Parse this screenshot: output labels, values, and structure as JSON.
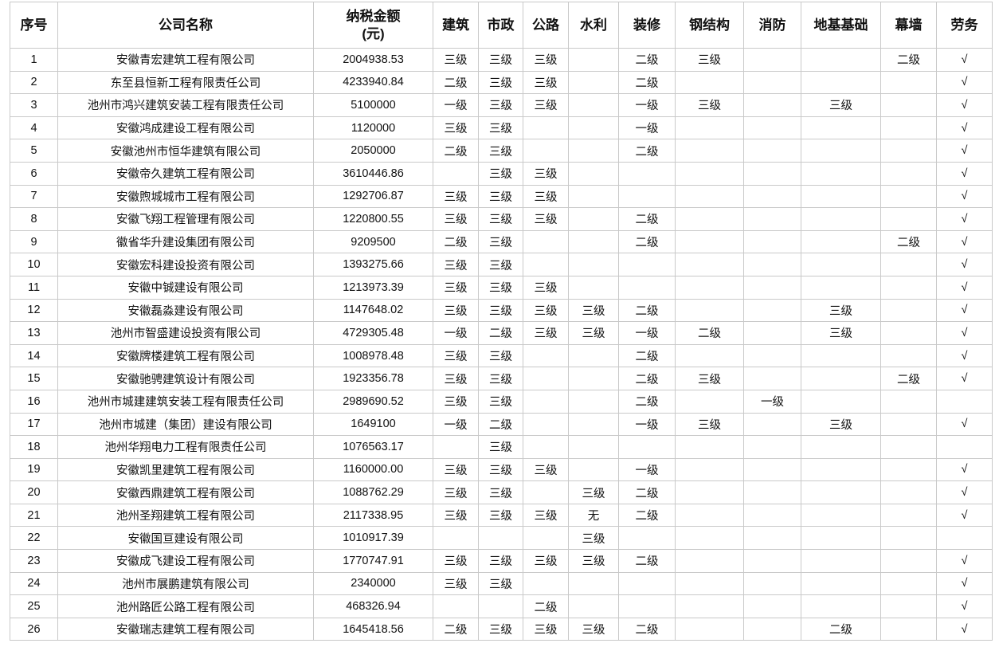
{
  "table": {
    "header": [
      "序号",
      "公司名称",
      "纳税金额\n(元)",
      "建筑",
      "市政",
      "公路",
      "水利",
      "装修",
      "钢结构",
      "消防",
      "地基基础",
      "幕墙",
      "劳务"
    ],
    "rows": [
      [
        1,
        "安徽青宏建筑工程有限公司",
        "2004938.53",
        "三级",
        "三级",
        "三级",
        null,
        "二级",
        "三级",
        null,
        null,
        "二级",
        "√"
      ],
      [
        2,
        "东至县恒新工程有限责任公司",
        "4233940.84",
        "二级",
        "三级",
        "三级",
        null,
        "二级",
        null,
        null,
        null,
        null,
        "√"
      ],
      [
        3,
        "池州市鸿兴建筑安装工程有限责任公司",
        "5100000",
        "一级",
        "三级",
        "三级",
        null,
        "一级",
        "三级",
        null,
        "三级",
        null,
        "√"
      ],
      [
        4,
        "安徽鸿成建设工程有限公司",
        "1120000",
        "三级",
        "三级",
        null,
        null,
        "一级",
        null,
        null,
        null,
        null,
        "√"
      ],
      [
        5,
        "安徽池州市恒华建筑有限公司",
        "2050000",
        "二级",
        "三级",
        null,
        null,
        "二级",
        null,
        null,
        null,
        null,
        "√"
      ],
      [
        6,
        "安徽帝久建筑工程有限公司",
        "3610446.86",
        null,
        "三级",
        "三级",
        null,
        null,
        null,
        null,
        null,
        null,
        "√"
      ],
      [
        7,
        "安徽煦城城市工程有限公司",
        "1292706.87",
        "三级",
        "三级",
        "三级",
        null,
        null,
        null,
        null,
        null,
        null,
        "√"
      ],
      [
        8,
        "安徽飞翔工程管理有限公司",
        "1220800.55",
        "三级",
        "三级",
        "三级",
        null,
        "二级",
        null,
        null,
        null,
        null,
        "√"
      ],
      [
        9,
        "徽省华升建设集团有限公司",
        "9209500",
        "二级",
        "三级",
        null,
        null,
        "二级",
        null,
        null,
        null,
        "二级",
        "√"
      ],
      [
        10,
        "安徽宏科建设投资有限公司",
        "1393275.66",
        "三级",
        "三级",
        null,
        null,
        null,
        null,
        null,
        null,
        null,
        "√"
      ],
      [
        11,
        "安徽中铖建设有限公司",
        "1213973.39",
        "三级",
        "三级",
        "三级",
        null,
        null,
        null,
        null,
        null,
        null,
        "√"
      ],
      [
        12,
        "安徽磊淼建设有限公司",
        "1147648.02",
        "三级",
        "三级",
        "三级",
        "三级",
        "二级",
        null,
        null,
        "三级",
        null,
        "√"
      ],
      [
        13,
        "池州市智盛建设投资有限公司",
        "4729305.48",
        "一级",
        "二级",
        "三级",
        "三级",
        "一级",
        "二级",
        null,
        "三级",
        null,
        "√"
      ],
      [
        14,
        "安徽牌楼建筑工程有限公司",
        "1008978.48",
        "三级",
        "三级",
        null,
        null,
        "二级",
        null,
        null,
        null,
        null,
        "√"
      ],
      [
        15,
        "安徽驰骋建筑设计有限公司",
        "1923356.78",
        "三级",
        "三级",
        null,
        null,
        "二级",
        "三级",
        null,
        null,
        "二级",
        "√"
      ],
      [
        16,
        "池州市城建建筑安装工程有限责任公司",
        "2989690.52",
        "三级",
        "三级",
        null,
        null,
        "二级",
        null,
        "一级",
        null,
        null,
        null
      ],
      [
        17,
        "池州市城建（集团）建设有限公司",
        "1649100",
        "一级",
        "二级",
        null,
        null,
        "一级",
        "三级",
        null,
        "三级",
        null,
        "√"
      ],
      [
        18,
        "池州华翔电力工程有限责任公司",
        "1076563.17",
        null,
        "三级",
        null,
        null,
        null,
        null,
        null,
        null,
        null,
        null
      ],
      [
        19,
        "安徽凯里建筑工程有限公司",
        "1160000.00",
        "三级",
        "三级",
        "三级",
        null,
        "一级",
        null,
        null,
        null,
        null,
        "√"
      ],
      [
        20,
        "安徽西鼎建筑工程有限公司",
        "1088762.29",
        "三级",
        "三级",
        null,
        "三级",
        "二级",
        null,
        null,
        null,
        null,
        "√"
      ],
      [
        21,
        "池州圣翔建筑工程有限公司",
        "2117338.95",
        "三级",
        "三级",
        "三级",
        "无",
        "二级",
        null,
        null,
        null,
        null,
        "√"
      ],
      [
        22,
        "安徽国亘建设有限公司",
        "1010917.39",
        null,
        null,
        null,
        "三级",
        null,
        null,
        null,
        null,
        null,
        null
      ],
      [
        23,
        "安徽成飞建设工程有限公司",
        "1770747.91",
        "三级",
        "三级",
        "三级",
        "三级",
        "二级",
        null,
        null,
        null,
        null,
        "√"
      ],
      [
        24,
        "池州市展鹏建筑有限公司",
        "2340000",
        "三级",
        "三级",
        null,
        null,
        null,
        null,
        null,
        null,
        null,
        "√"
      ],
      [
        25,
        "池州路匠公路工程有限公司",
        "468326.94",
        null,
        null,
        "二级",
        null,
        null,
        null,
        null,
        null,
        null,
        "√"
      ],
      [
        26,
        "安徽瑞志建筑工程有限公司",
        "1645418.56",
        "二级",
        "三级",
        "三级",
        "三级",
        "二级",
        null,
        null,
        "二级",
        null,
        "√"
      ]
    ]
  }
}
